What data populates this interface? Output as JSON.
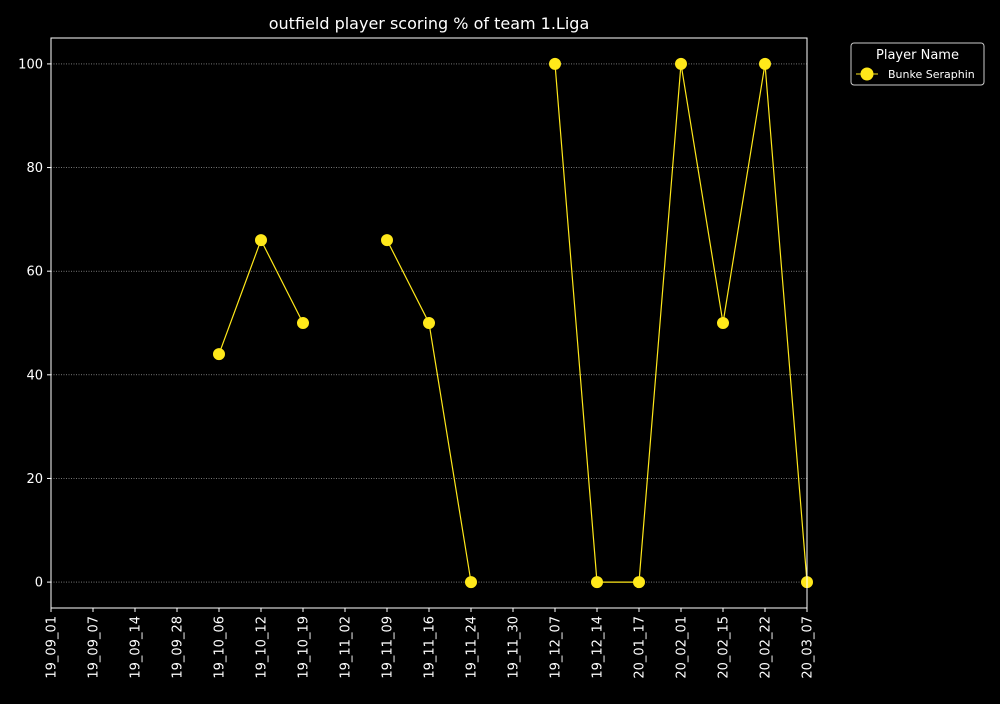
{
  "chart_data": {
    "type": "line",
    "title": "outfield player scoring % of team 1.Liga",
    "xlabel": "",
    "ylabel": "",
    "categories": [
      "19_09_01",
      "19_09_07",
      "19_09_14",
      "19_09_28",
      "19_10_06",
      "19_10_12",
      "19_10_19",
      "19_11_02",
      "19_11_09",
      "19_11_16",
      "19_11_24",
      "19_11_30",
      "19_12_07",
      "19_12_14",
      "20_01_17",
      "20_02_01",
      "20_02_15",
      "20_02_22",
      "20_03_07"
    ],
    "series": [
      {
        "name": "Bunke Seraphin",
        "color": "#ffe81a",
        "values": [
          null,
          null,
          null,
          null,
          44,
          66,
          50,
          null,
          66,
          50,
          0,
          null,
          100,
          0,
          0,
          100,
          50,
          100,
          0
        ]
      }
    ],
    "yticks": [
      0,
      20,
      40,
      60,
      80,
      100
    ],
    "ylim": [
      -5,
      105
    ],
    "grid": "horizontal-dotted",
    "legend": {
      "title": "Player Name",
      "placement": "outside-top-right"
    },
    "background": "#000000",
    "foreground": "#ffffff"
  }
}
